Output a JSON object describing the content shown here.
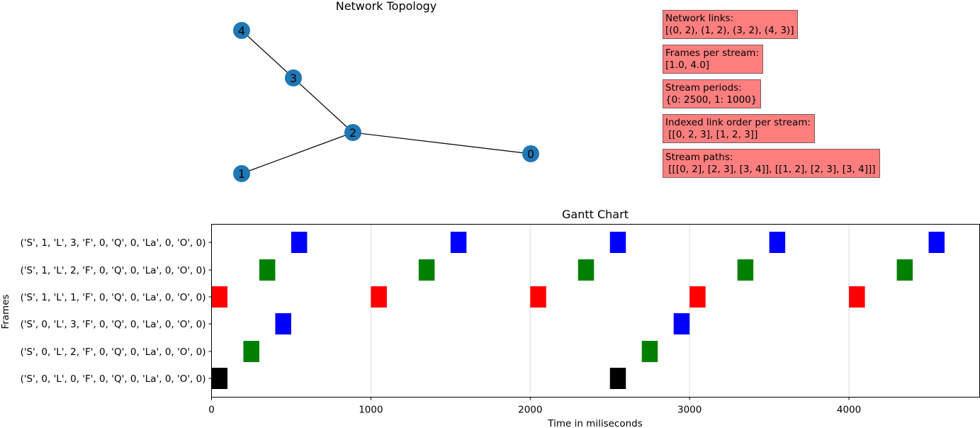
{
  "topology": {
    "title": "Network  Topology",
    "nodes": [
      {
        "id": "4",
        "label": "4"
      },
      {
        "id": "3",
        "label": "3"
      },
      {
        "id": "2",
        "label": "2"
      },
      {
        "id": "1",
        "label": "1"
      },
      {
        "id": "0",
        "label": "0"
      }
    ],
    "edges": [
      [
        "0",
        "2"
      ],
      [
        "1",
        "2"
      ],
      [
        "3",
        "2"
      ],
      [
        "4",
        "3"
      ]
    ],
    "node_color": "#1f77b4"
  },
  "info_boxes": [
    {
      "title": "Network links:",
      "value": "[(0, 2), (1, 2), (3, 2), (4, 3)]"
    },
    {
      "title": "Frames per stream:",
      "value": "[1.0, 4.0]"
    },
    {
      "title": "Stream periods:",
      "value": "{0: 2500, 1: 1000}"
    },
    {
      "title": "Indexed link order per stream:",
      "value": " [[0, 2, 3], [1, 2, 3]]"
    },
    {
      "title": "Stream paths:",
      "value": " [[[0, 2], [2, 3], [3, 4]], [[1, 2], [2, 3], [3, 4]]]"
    }
  ],
  "chart_data": {
    "type": "gantt",
    "title": "Gantt Chart",
    "xlabel": "Time in miliseconds",
    "ylabel": "Frames",
    "xlim": [
      0,
      4820
    ],
    "xticks": [
      0,
      1000,
      2000,
      3000,
      4000
    ],
    "grid": "vertical",
    "categories": [
      "('S', 1, 'L', 3, 'F', 0, 'Q', 0, 'La', 0, 'O', 0)",
      "('S', 1, 'L', 2, 'F', 0, 'Q', 0, 'La', 0, 'O', 0)",
      "('S', 1, 'L', 1, 'F', 0, 'Q', 0, 'La', 0, 'O', 0)",
      "('S', 0, 'L', 3, 'F', 0, 'Q', 0, 'La', 0, 'O', 0)",
      "('S', 0, 'L', 2, 'F', 0, 'Q', 0, 'La', 0, 'O', 0)",
      "('S', 0, 'L', 0, 'F', 0, 'Q', 0, 'La', 0, 'O', 0)"
    ],
    "bars": [
      {
        "row": 0,
        "start": 500,
        "duration": 100,
        "color": "#0000ff"
      },
      {
        "row": 0,
        "start": 1500,
        "duration": 100,
        "color": "#0000ff"
      },
      {
        "row": 0,
        "start": 2500,
        "duration": 100,
        "color": "#0000ff"
      },
      {
        "row": 0,
        "start": 3500,
        "duration": 100,
        "color": "#0000ff"
      },
      {
        "row": 0,
        "start": 4500,
        "duration": 100,
        "color": "#0000ff"
      },
      {
        "row": 1,
        "start": 300,
        "duration": 100,
        "color": "#008000"
      },
      {
        "row": 1,
        "start": 1300,
        "duration": 100,
        "color": "#008000"
      },
      {
        "row": 1,
        "start": 2300,
        "duration": 100,
        "color": "#008000"
      },
      {
        "row": 1,
        "start": 3300,
        "duration": 100,
        "color": "#008000"
      },
      {
        "row": 1,
        "start": 4300,
        "duration": 100,
        "color": "#008000"
      },
      {
        "row": 2,
        "start": 0,
        "duration": 100,
        "color": "#ff0000"
      },
      {
        "row": 2,
        "start": 1000,
        "duration": 100,
        "color": "#ff0000"
      },
      {
        "row": 2,
        "start": 2000,
        "duration": 100,
        "color": "#ff0000"
      },
      {
        "row": 2,
        "start": 3000,
        "duration": 100,
        "color": "#ff0000"
      },
      {
        "row": 2,
        "start": 4000,
        "duration": 100,
        "color": "#ff0000"
      },
      {
        "row": 3,
        "start": 400,
        "duration": 100,
        "color": "#0000ff"
      },
      {
        "row": 3,
        "start": 2900,
        "duration": 100,
        "color": "#0000ff"
      },
      {
        "row": 4,
        "start": 200,
        "duration": 100,
        "color": "#008000"
      },
      {
        "row": 4,
        "start": 2700,
        "duration": 100,
        "color": "#008000"
      },
      {
        "row": 5,
        "start": 0,
        "duration": 100,
        "color": "#000000"
      },
      {
        "row": 5,
        "start": 2500,
        "duration": 100,
        "color": "#000000"
      }
    ]
  }
}
